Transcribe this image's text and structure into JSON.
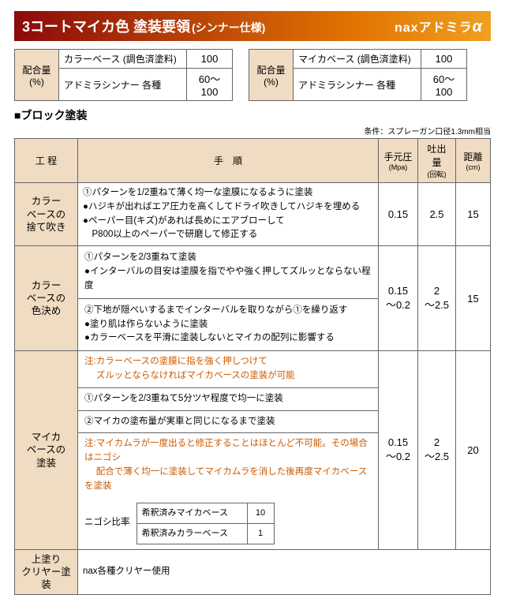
{
  "title": {
    "main": "3コートマイカ色 塗装要領",
    "sub": "(シンナー仕様)",
    "brand_prefix": "nax",
    "brand_main": "アドミラ",
    "brand_alpha": "α"
  },
  "ratio_label": "配合量\n(%)",
  "ratio_left": [
    {
      "label": "カラーベース (調色済塗料)",
      "val": "100"
    },
    {
      "label": "アドミラシンナー 各種",
      "val": "60～100"
    }
  ],
  "ratio_right": [
    {
      "label": "マイカベース (調色済塗料)",
      "val": "100"
    },
    {
      "label": "アドミラシンナー 各種",
      "val": "60～100"
    }
  ],
  "section": "■ブロック塗装",
  "condition": "条件：スプレーガン口径1.3mm相当",
  "head": {
    "proc": "工 程",
    "steps": "手　順",
    "press": "手元圧",
    "press_u": "(Mpa)",
    "flow": "吐出量",
    "flow_u": "(回転)",
    "dist": "距離",
    "dist_u": "(cm)"
  },
  "rows": [
    {
      "proc": "カラー\nベースの\n捨て吹き",
      "steps": "①パターンを1/2重ねて薄く均一な塗膜になるように塗装\n●ハジキが出ればエア圧力を高くしてドライ吹きしてハジキを埋める\n●ペーパー目(キズ)があれば長めにエアブローして\n　P800以上のペーパーで研磨して修正する",
      "press": "0.15",
      "flow": "2.5",
      "dist": "15"
    },
    {
      "proc": "カラー\nベースの\n色決め",
      "steps": "①パターンを2/3重ねて塗装\n●インターバルの目安は塗膜を指でやや強く押してズルッとならない程度\n——\n②下地が隠ぺいするまでインターバルを取りながら①を繰り返す\n●塗り肌は作らないように塗装\n●カラーベースを平滑に塗装しないとマイカの配列に影響する",
      "press": "0.15\n～0.2",
      "flow": "2\n～2.5",
      "dist": "15"
    },
    {
      "proc": "マイカ\nベースの\n塗装",
      "red1": "注:カラーベースの塗膜に指を強く押しつけて\n　 ズルッとならなければマイカベースの塗装が可能",
      "steps": "①パターンを2/3重ねて5分ツヤ程度で均一に塗装\n——\n②マイカの塗布量が実車と同じになるまで塗装",
      "red2": "注:マイカムラが一度出ると修正することはほとんど不可能。その場合はニゴシ\n　 配合で薄く均一に塗装してマイカムラを消した後再度マイカベースを塗装",
      "nigoshi_label": "ニゴシ比率",
      "nigoshi": [
        {
          "l": "希釈済みマイカベース",
          "v": "10"
        },
        {
          "l": "希釈済みカラーベース",
          "v": "1"
        }
      ],
      "press": "0.15\n～0.2",
      "flow": "2\n～2.5",
      "dist": "20"
    },
    {
      "proc": "上塗り\nクリヤー塗装",
      "steps": "nax各種クリヤー使用",
      "novals": true
    }
  ]
}
